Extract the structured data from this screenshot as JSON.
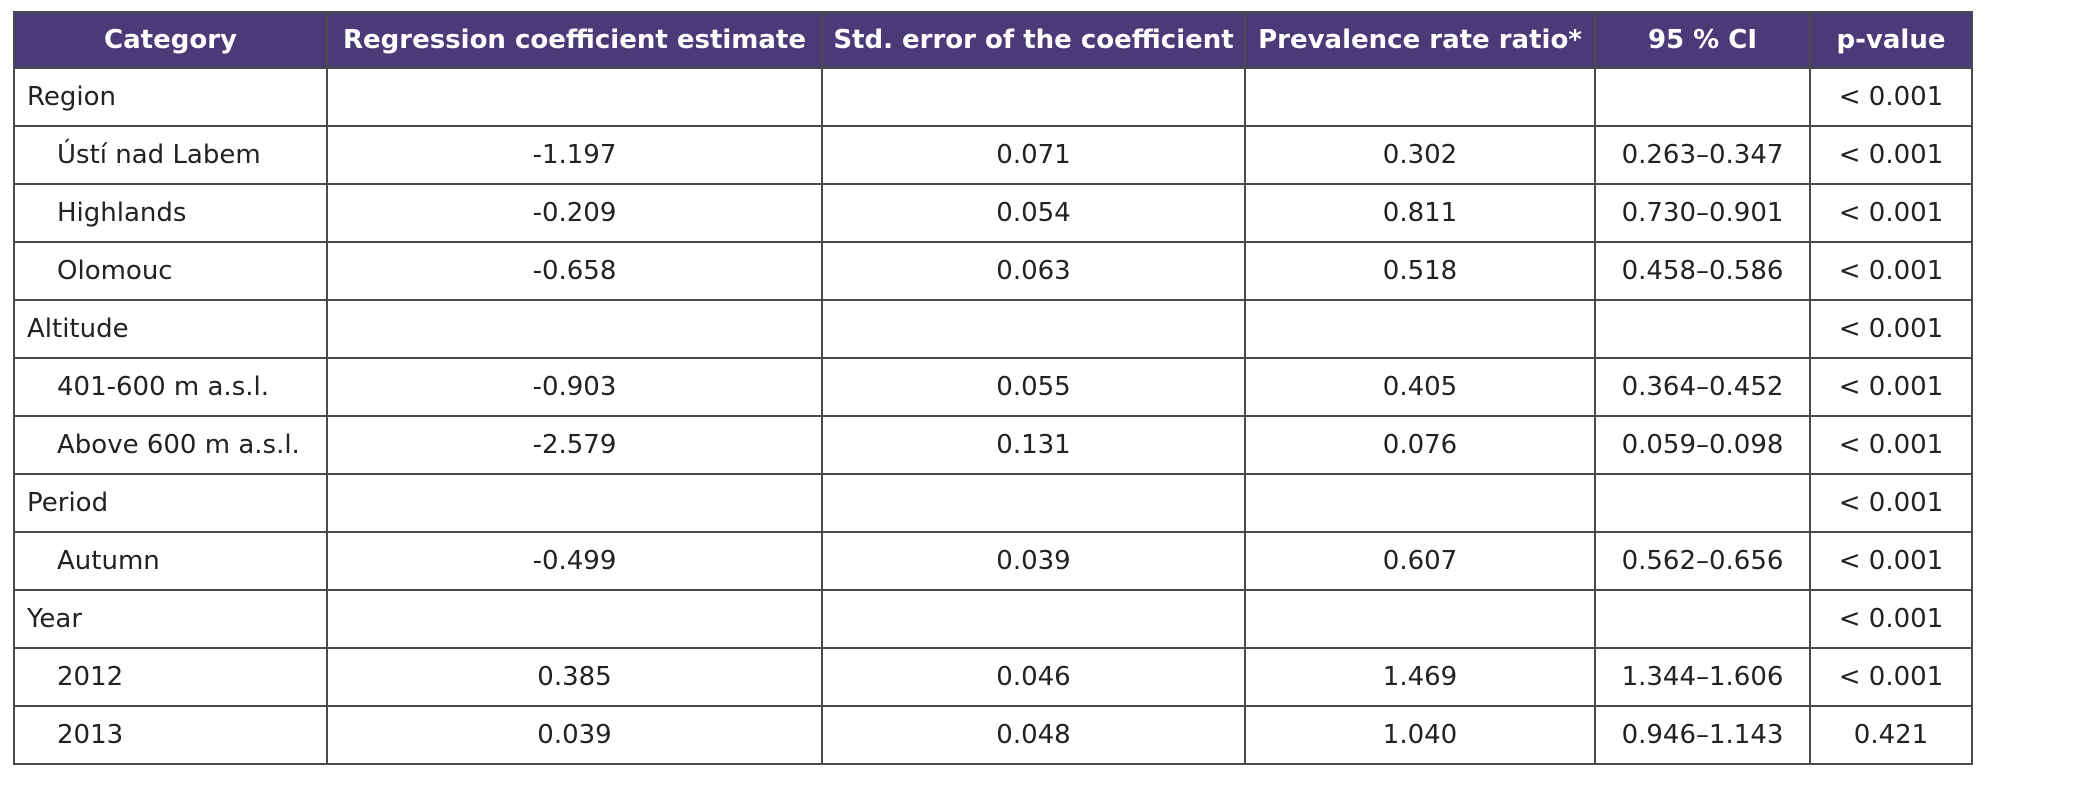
{
  "headers": {
    "category": "Category",
    "coef": "Regression coefficient estimate",
    "se": "Std. error of the coefficient",
    "prr": "Prevalence rate ratio*",
    "ci": "95 % CI",
    "p": "p-value"
  },
  "rows": [
    {
      "category": "Region",
      "coef": "",
      "se": "",
      "prr": "",
      "ci": "",
      "p": "< 0.001"
    },
    {
      "category": "Ústí nad Labem",
      "coef": "-1.197",
      "se": "0.071",
      "prr": "0.302",
      "ci": "0.263–0.347",
      "p": "< 0.001"
    },
    {
      "category": "Highlands",
      "coef": "-0.209",
      "se": "0.054",
      "prr": "0.811",
      "ci": "0.730–0.901",
      "p": "< 0.001"
    },
    {
      "category": "Olomouc",
      "coef": "-0.658",
      "se": "0.063",
      "prr": "0.518",
      "ci": "0.458–0.586",
      "p": "< 0.001"
    },
    {
      "category": "Altitude",
      "coef": "",
      "se": "",
      "prr": "",
      "ci": "",
      "p": "< 0.001"
    },
    {
      "category": "401-600 m a.s.l.",
      "coef": "-0.903",
      "se": "0.055",
      "prr": "0.405",
      "ci": "0.364–0.452",
      "p": "< 0.001"
    },
    {
      "category": "Above 600 m a.s.l.",
      "coef": "-2.579",
      "se": "0.131",
      "prr": "0.076",
      "ci": "0.059–0.098",
      "p": "< 0.001"
    },
    {
      "category": "Period",
      "coef": "",
      "se": "",
      "prr": "",
      "ci": "",
      "p": "< 0.001"
    },
    {
      "category": "Autumn",
      "coef": "-0.499",
      "se": "0.039",
      "prr": "0.607",
      "ci": "0.562–0.656",
      "p": "< 0.001"
    },
    {
      "category": "Year",
      "coef": "",
      "se": "",
      "prr": "",
      "ci": "",
      "p": "< 0.001"
    },
    {
      "category": "2012",
      "coef": "0.385",
      "se": "0.046",
      "prr": "1.469",
      "ci": "1.344–1.606",
      "p": "< 0.001"
    },
    {
      "category": "2013",
      "coef": "0.039",
      "se": "0.048",
      "prr": "1.040",
      "ci": "0.946–1.143",
      "p": "0.421"
    }
  ],
  "colors": {
    "header_bg": "#4a3a78",
    "header_text": "#ffffff",
    "border": "#4b4b4b"
  }
}
